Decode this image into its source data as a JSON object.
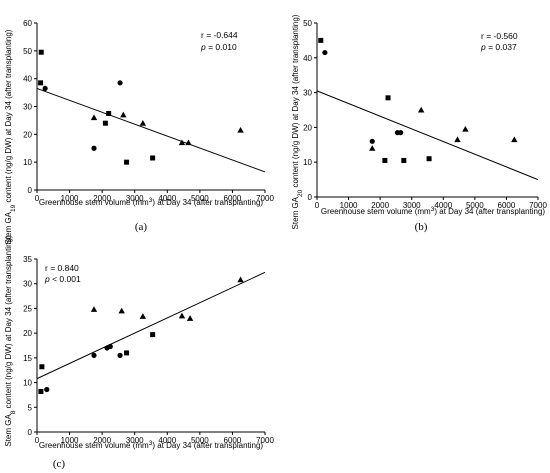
{
  "figure": {
    "panels": [
      {
        "id": "a",
        "panel_label": "(a)",
        "ylabel_main": "Stem GA",
        "ylabel_sub": "19",
        "ylabel_rest": " content (ng/g DW) at Day 34 (after transplanting)",
        "xlabel_main": "Greenhouse stem volume (mm",
        "xlabel_sup": "3",
        "xlabel_rest": ") at Day 34 (after transplanting)",
        "r_text": "r = -0.644",
        "p_label": "p",
        "p_value": " = 0.010"
      },
      {
        "id": "b",
        "panel_label": "(b)",
        "ylabel_main": "Stem GA",
        "ylabel_sub": "20",
        "ylabel_rest": " content (ng/g DW) at Day 34 (after transplanting)",
        "xlabel_main": "Greenhouse stem volume (mm",
        "xlabel_sup": "3",
        "xlabel_rest": ") at Day 34 (after transplanting)",
        "r_text": "r = -0.560",
        "p_label": "p",
        "p_value": " = 0.037"
      },
      {
        "id": "c",
        "panel_label": "(c)",
        "ylabel_main": "Stem GA",
        "ylabel_sub": "8",
        "ylabel_rest": " content (ng/g DW) at Day 34 (after transplanting)",
        "xlabel_main": "Greenhouse stem volume (mm",
        "xlabel_sup": "3",
        "xlabel_rest": ") at Day 34 (after transplanting)",
        "r_text": "r = 0.840",
        "p_label": "p",
        "p_value": " < 0.001"
      }
    ]
  },
  "chart_data": [
    {
      "type": "scatter",
      "panel": "a",
      "xlim": [
        0,
        7000
      ],
      "ylim": [
        0,
        60
      ],
      "xticks": [
        0,
        1000,
        2000,
        3000,
        4000,
        5000,
        6000,
        7000
      ],
      "yticks": [
        0,
        10,
        20,
        30,
        40,
        50,
        60
      ],
      "grid": false,
      "regression": {
        "x": [
          0,
          7000
        ],
        "y": [
          36.5,
          6.5
        ]
      },
      "points": [
        {
          "marker": "square",
          "x": 130,
          "y": 49.5
        },
        {
          "marker": "square",
          "x": 110,
          "y": 38.5
        },
        {
          "marker": "circle",
          "x": 250,
          "y": 36.5
        },
        {
          "marker": "circle",
          "x": 2550,
          "y": 38.5
        },
        {
          "marker": "square",
          "x": 2200,
          "y": 27.5
        },
        {
          "marker": "square",
          "x": 2100,
          "y": 24
        },
        {
          "marker": "triangle",
          "x": 1750,
          "y": 26
        },
        {
          "marker": "triangle",
          "x": 2650,
          "y": 27
        },
        {
          "marker": "triangle",
          "x": 3250,
          "y": 24
        },
        {
          "marker": "circle",
          "x": 1750,
          "y": 15
        },
        {
          "marker": "square",
          "x": 2750,
          "y": 10
        },
        {
          "marker": "square",
          "x": 3550,
          "y": 11.5
        },
        {
          "marker": "triangle",
          "x": 4450,
          "y": 17
        },
        {
          "marker": "triangle",
          "x": 4650,
          "y": 17
        },
        {
          "marker": "triangle",
          "x": 6250,
          "y": 21.5
        }
      ]
    },
    {
      "type": "scatter",
      "panel": "b",
      "xlim": [
        0,
        7000
      ],
      "ylim": [
        0,
        50
      ],
      "xticks": [
        0,
        1000,
        2000,
        3000,
        4000,
        5000,
        6000,
        7000
      ],
      "yticks": [
        0,
        10,
        20,
        30,
        40,
        50
      ],
      "grid": false,
      "regression": {
        "x": [
          0,
          7000
        ],
        "y": [
          30.5,
          5
        ]
      },
      "points": [
        {
          "marker": "square",
          "x": 120,
          "y": 45
        },
        {
          "marker": "circle",
          "x": 250,
          "y": 41.5
        },
        {
          "marker": "square",
          "x": 2250,
          "y": 28.5
        },
        {
          "marker": "triangle",
          "x": 3300,
          "y": 25
        },
        {
          "marker": "circle",
          "x": 2550,
          "y": 18.5
        },
        {
          "marker": "circle",
          "x": 2650,
          "y": 18.5
        },
        {
          "marker": "triangle",
          "x": 4700,
          "y": 19.5
        },
        {
          "marker": "triangle",
          "x": 4450,
          "y": 16.5
        },
        {
          "marker": "triangle",
          "x": 6250,
          "y": 16.5
        },
        {
          "marker": "circle",
          "x": 1750,
          "y": 16
        },
        {
          "marker": "triangle",
          "x": 1750,
          "y": 14
        },
        {
          "marker": "square",
          "x": 2150,
          "y": 10.5
        },
        {
          "marker": "square",
          "x": 2750,
          "y": 10.5
        },
        {
          "marker": "square",
          "x": 3550,
          "y": 11
        }
      ]
    },
    {
      "type": "scatter",
      "panel": "c",
      "xlim": [
        0,
        7000
      ],
      "ylim": [
        0,
        35
      ],
      "xticks": [
        0,
        1000,
        2000,
        3000,
        4000,
        5000,
        6000,
        7000
      ],
      "yticks": [
        0,
        5,
        10,
        15,
        20,
        25,
        30,
        35
      ],
      "grid": false,
      "regression": {
        "x": [
          0,
          7000
        ],
        "y": [
          10.8,
          32.3
        ]
      },
      "points": [
        {
          "marker": "square",
          "x": 150,
          "y": 13.2
        },
        {
          "marker": "square",
          "x": 120,
          "y": 8.2
        },
        {
          "marker": "circle",
          "x": 300,
          "y": 8.6
        },
        {
          "marker": "triangle",
          "x": 1750,
          "y": 24.8
        },
        {
          "marker": "triangle",
          "x": 2600,
          "y": 24.5
        },
        {
          "marker": "triangle",
          "x": 3250,
          "y": 23.4
        },
        {
          "marker": "triangle",
          "x": 4450,
          "y": 23.5
        },
        {
          "marker": "triangle",
          "x": 4700,
          "y": 23
        },
        {
          "marker": "triangle",
          "x": 6250,
          "y": 30.8
        },
        {
          "marker": "circle",
          "x": 1750,
          "y": 15.5
        },
        {
          "marker": "circle",
          "x": 2150,
          "y": 17
        },
        {
          "marker": "circle",
          "x": 2250,
          "y": 17.3
        },
        {
          "marker": "circle",
          "x": 2550,
          "y": 15.5
        },
        {
          "marker": "square",
          "x": 2750,
          "y": 16
        },
        {
          "marker": "square",
          "x": 3550,
          "y": 19.7
        }
      ]
    }
  ]
}
